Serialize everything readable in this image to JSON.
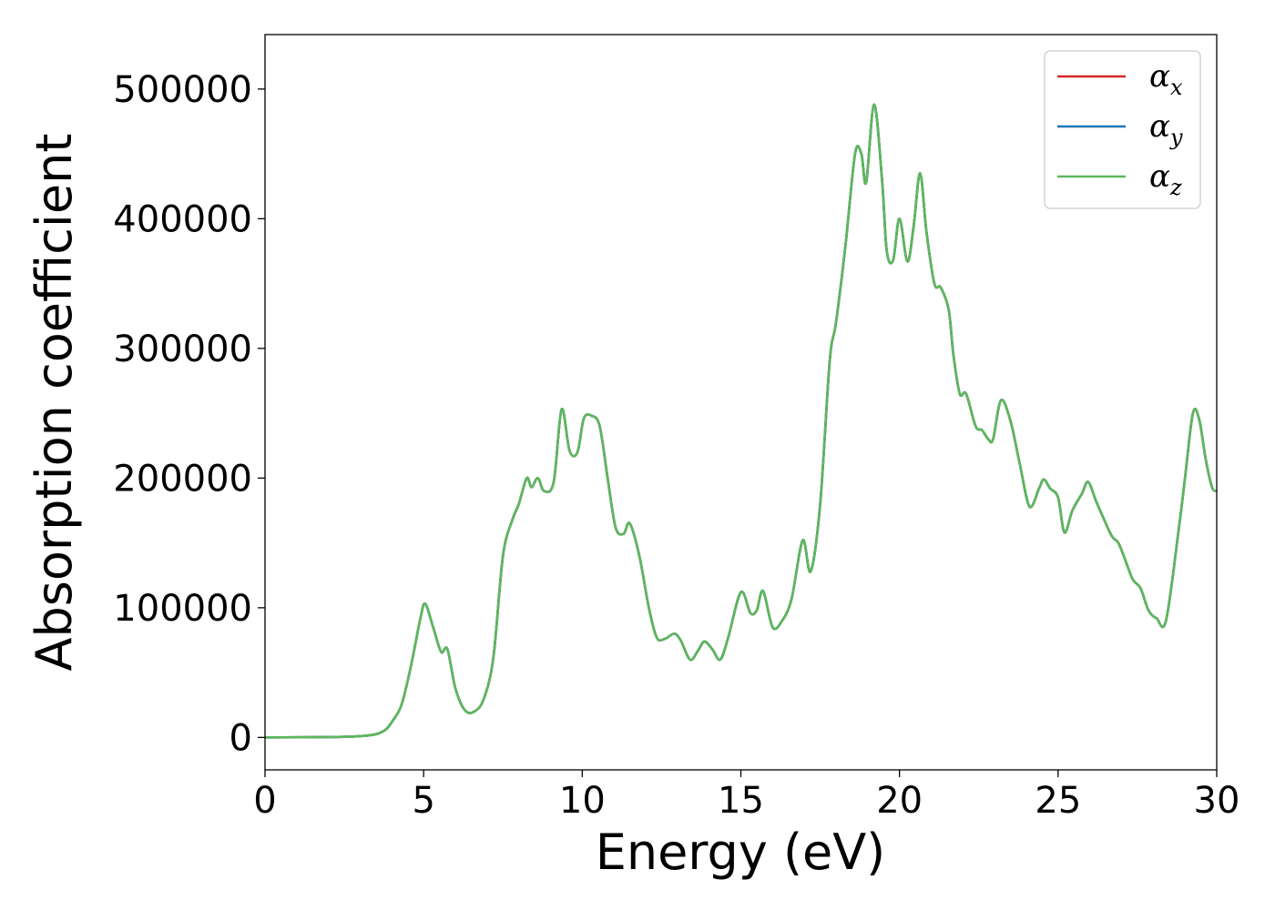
{
  "chart_data": {
    "type": "line",
    "title": "",
    "xlabel": "Energy (eV)",
    "ylabel": "Absorption coefficient",
    "xlim": [
      0,
      30
    ],
    "ylim": [
      -25000,
      542000
    ],
    "xticks": [
      0,
      5,
      10,
      15,
      20,
      25,
      30
    ],
    "yticks": [
      0,
      100000,
      200000,
      300000,
      400000,
      500000
    ],
    "grid": false,
    "legend_position": "top-right",
    "series": [
      {
        "name": "α",
        "subscript": "x",
        "color": "#d62728",
        "x": [
          0,
          2,
          3,
          3.5,
          3.8,
          4.0,
          4.3,
          4.6,
          4.9,
          5.05,
          5.3,
          5.55,
          5.75,
          6.0,
          6.3,
          6.6,
          6.9,
          7.2,
          7.5,
          7.8,
          8.0,
          8.25,
          8.4,
          8.6,
          8.8,
          9.1,
          9.35,
          9.6,
          9.85,
          10.05,
          10.3,
          10.55,
          10.8,
          11.05,
          11.3,
          11.5,
          11.8,
          12.1,
          12.35,
          12.6,
          12.9,
          13.1,
          13.4,
          13.65,
          13.85,
          14.1,
          14.35,
          14.6,
          15.0,
          15.3,
          15.5,
          15.7,
          16.0,
          16.3,
          16.6,
          16.95,
          17.2,
          17.5,
          17.8,
          18.0,
          18.3,
          18.6,
          18.8,
          18.95,
          19.2,
          19.45,
          19.6,
          19.8,
          20.0,
          20.25,
          20.45,
          20.65,
          20.85,
          21.1,
          21.3,
          21.55,
          21.7,
          21.9,
          22.1,
          22.4,
          22.6,
          22.8,
          22.95,
          23.2,
          23.5,
          23.8,
          24.1,
          24.4,
          24.55,
          24.75,
          25.0,
          25.2,
          25.45,
          25.75,
          25.95,
          26.2,
          26.45,
          26.7,
          26.9,
          27.1,
          27.35,
          27.6,
          27.85,
          28.1,
          28.4,
          28.8,
          29.0,
          29.25,
          29.45,
          29.65,
          29.85,
          30.0
        ],
        "y": [
          0,
          300,
          1000,
          2500,
          6000,
          12000,
          25000,
          55000,
          92000,
          103000,
          85000,
          66000,
          68000,
          38000,
          21000,
          20000,
          30000,
          62000,
          140000,
          168000,
          180000,
          200000,
          193000,
          200000,
          190000,
          197000,
          253000,
          221000,
          220000,
          246000,
          248000,
          240000,
          200000,
          162000,
          157000,
          165000,
          140000,
          100000,
          77000,
          76000,
          80000,
          75000,
          60000,
          67000,
          74000,
          68000,
          60000,
          77000,
          112000,
          96000,
          98000,
          113000,
          85000,
          90000,
          107000,
          152000,
          128000,
          180000,
          290000,
          320000,
          380000,
          450000,
          450000,
          428000,
          488000,
          430000,
          375000,
          368000,
          400000,
          367000,
          395000,
          435000,
          390000,
          350000,
          347000,
          330000,
          295000,
          265000,
          265000,
          240000,
          237000,
          230000,
          230000,
          260000,
          244000,
          210000,
          178000,
          192000,
          199000,
          192000,
          185000,
          158000,
          175000,
          188000,
          197000,
          182000,
          168000,
          155000,
          150000,
          138000,
          122000,
          115000,
          98000,
          92000,
          90000,
          160000,
          200000,
          250000,
          245000,
          215000,
          193000,
          190000
        ]
      },
      {
        "name": "α",
        "subscript": "y",
        "color": "#1f77b4",
        "x": [
          0,
          2,
          3,
          3.5,
          3.8,
          4.0,
          4.3,
          4.6,
          4.9,
          5.05,
          5.3,
          5.55,
          5.75,
          6.0,
          6.3,
          6.6,
          6.9,
          7.2,
          7.5,
          7.8,
          8.0,
          8.25,
          8.4,
          8.6,
          8.8,
          9.1,
          9.35,
          9.6,
          9.85,
          10.05,
          10.3,
          10.55,
          10.8,
          11.05,
          11.3,
          11.5,
          11.8,
          12.1,
          12.35,
          12.6,
          12.9,
          13.1,
          13.4,
          13.65,
          13.85,
          14.1,
          14.35,
          14.6,
          15.0,
          15.3,
          15.5,
          15.7,
          16.0,
          16.3,
          16.6,
          16.95,
          17.2,
          17.5,
          17.8,
          18.0,
          18.3,
          18.6,
          18.8,
          18.95,
          19.2,
          19.45,
          19.6,
          19.8,
          20.0,
          20.25,
          20.45,
          20.65,
          20.85,
          21.1,
          21.3,
          21.55,
          21.7,
          21.9,
          22.1,
          22.4,
          22.6,
          22.8,
          22.95,
          23.2,
          23.5,
          23.8,
          24.1,
          24.4,
          24.55,
          24.75,
          25.0,
          25.2,
          25.45,
          25.75,
          25.95,
          26.2,
          26.45,
          26.7,
          26.9,
          27.1,
          27.35,
          27.6,
          27.85,
          28.1,
          28.4,
          28.8,
          29.0,
          29.25,
          29.45,
          29.65,
          29.85,
          30.0
        ],
        "y": [
          0,
          300,
          1000,
          2500,
          6000,
          12000,
          25000,
          55000,
          92000,
          103000,
          85000,
          66000,
          68000,
          38000,
          21000,
          20000,
          30000,
          62000,
          140000,
          168000,
          180000,
          200000,
          193000,
          200000,
          190000,
          197000,
          253000,
          221000,
          220000,
          246000,
          248000,
          240000,
          200000,
          162000,
          157000,
          165000,
          140000,
          100000,
          77000,
          76000,
          80000,
          75000,
          60000,
          67000,
          74000,
          68000,
          60000,
          77000,
          112000,
          96000,
          98000,
          113000,
          85000,
          90000,
          107000,
          152000,
          128000,
          180000,
          290000,
          320000,
          380000,
          450000,
          450000,
          428000,
          488000,
          430000,
          375000,
          368000,
          400000,
          367000,
          395000,
          435000,
          390000,
          350000,
          347000,
          330000,
          295000,
          265000,
          265000,
          240000,
          237000,
          230000,
          230000,
          260000,
          244000,
          210000,
          178000,
          192000,
          199000,
          192000,
          185000,
          158000,
          175000,
          188000,
          197000,
          182000,
          168000,
          155000,
          150000,
          138000,
          122000,
          115000,
          98000,
          92000,
          90000,
          160000,
          200000,
          250000,
          245000,
          215000,
          193000,
          190000
        ]
      },
      {
        "name": "α",
        "subscript": "z",
        "color": "#5cb85c",
        "x": [
          0,
          2,
          3,
          3.5,
          3.8,
          4.0,
          4.3,
          4.6,
          4.9,
          5.05,
          5.3,
          5.55,
          5.75,
          6.0,
          6.3,
          6.6,
          6.9,
          7.2,
          7.5,
          7.8,
          8.0,
          8.25,
          8.4,
          8.6,
          8.8,
          9.1,
          9.35,
          9.6,
          9.85,
          10.05,
          10.3,
          10.55,
          10.8,
          11.05,
          11.3,
          11.5,
          11.8,
          12.1,
          12.35,
          12.6,
          12.9,
          13.1,
          13.4,
          13.65,
          13.85,
          14.1,
          14.35,
          14.6,
          15.0,
          15.3,
          15.5,
          15.7,
          16.0,
          16.3,
          16.6,
          16.95,
          17.2,
          17.5,
          17.8,
          18.0,
          18.3,
          18.6,
          18.8,
          18.95,
          19.2,
          19.45,
          19.6,
          19.8,
          20.0,
          20.25,
          20.45,
          20.65,
          20.85,
          21.1,
          21.3,
          21.55,
          21.7,
          21.9,
          22.1,
          22.4,
          22.6,
          22.8,
          22.95,
          23.2,
          23.5,
          23.8,
          24.1,
          24.4,
          24.55,
          24.75,
          25.0,
          25.2,
          25.45,
          25.75,
          25.95,
          26.2,
          26.45,
          26.7,
          26.9,
          27.1,
          27.35,
          27.6,
          27.85,
          28.1,
          28.4,
          28.8,
          29.0,
          29.25,
          29.45,
          29.65,
          29.85,
          30.0
        ],
        "y": [
          0,
          300,
          1000,
          2500,
          6000,
          12000,
          25000,
          55000,
          92000,
          103000,
          85000,
          66000,
          68000,
          38000,
          21000,
          20000,
          30000,
          62000,
          140000,
          168000,
          180000,
          200000,
          193000,
          200000,
          190000,
          197000,
          253000,
          221000,
          220000,
          246000,
          248000,
          240000,
          200000,
          162000,
          157000,
          165000,
          140000,
          100000,
          77000,
          76000,
          80000,
          75000,
          60000,
          67000,
          74000,
          68000,
          60000,
          77000,
          112000,
          96000,
          98000,
          113000,
          85000,
          90000,
          107000,
          152000,
          128000,
          180000,
          290000,
          320000,
          380000,
          450000,
          450000,
          428000,
          488000,
          430000,
          375000,
          368000,
          400000,
          367000,
          395000,
          435000,
          390000,
          350000,
          347000,
          330000,
          295000,
          265000,
          265000,
          240000,
          237000,
          230000,
          230000,
          260000,
          244000,
          210000,
          178000,
          192000,
          199000,
          192000,
          185000,
          158000,
          175000,
          188000,
          197000,
          182000,
          168000,
          155000,
          150000,
          138000,
          122000,
          115000,
          98000,
          92000,
          90000,
          160000,
          200000,
          250000,
          245000,
          215000,
          193000,
          190000
        ]
      }
    ]
  }
}
